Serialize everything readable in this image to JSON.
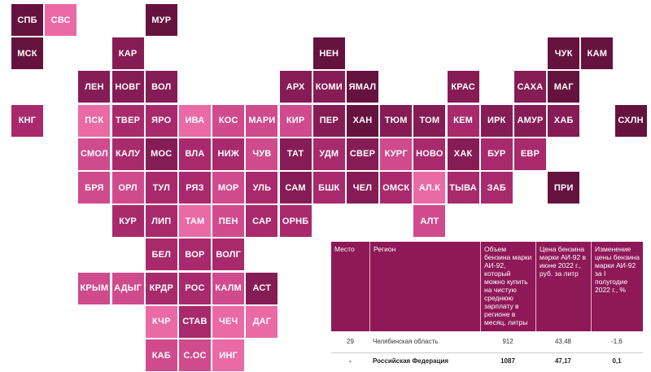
{
  "map": {
    "palette": {
      "c1": "#ea6aa6",
      "c2": "#cf4b8d",
      "c3": "#a82a6c",
      "c4": "#861c56",
      "c5": "#66123f"
    },
    "regions": [
      {
        "code": "СПБ",
        "col": 0,
        "row": 0,
        "shade": "c5"
      },
      {
        "code": "СВС",
        "col": 1,
        "row": 0,
        "shade": "c1"
      },
      {
        "code": "МУР",
        "col": 4,
        "row": 0,
        "shade": "c5"
      },
      {
        "code": "МСК",
        "col": 0,
        "row": 1,
        "shade": "c5"
      },
      {
        "code": "КАР",
        "col": 3,
        "row": 1,
        "shade": "c4"
      },
      {
        "code": "НЕН",
        "col": 9,
        "row": 1,
        "shade": "c5"
      },
      {
        "code": "ЧУК",
        "col": 16,
        "row": 1,
        "shade": "c5"
      },
      {
        "code": "КАМ",
        "col": 17,
        "row": 1,
        "shade": "c5"
      },
      {
        "code": "ЛЕН",
        "col": 2,
        "row": 2,
        "shade": "c4"
      },
      {
        "code": "НОВГ",
        "col": 3,
        "row": 2,
        "shade": "c4"
      },
      {
        "code": "ВОЛ",
        "col": 4,
        "row": 2,
        "shade": "c4"
      },
      {
        "code": "АРХ",
        "col": 8,
        "row": 2,
        "shade": "c4"
      },
      {
        "code": "КОМИ",
        "col": 9,
        "row": 2,
        "shade": "c4"
      },
      {
        "code": "ЯМАЛ",
        "col": 10,
        "row": 2,
        "shade": "c5"
      },
      {
        "code": "КРАС",
        "col": 13,
        "row": 2,
        "shade": "c4"
      },
      {
        "code": "САХА",
        "col": 15,
        "row": 2,
        "shade": "c4"
      },
      {
        "code": "МАГ",
        "col": 16,
        "row": 2,
        "shade": "c5"
      },
      {
        "code": "КНГ",
        "col": 0,
        "row": 3,
        "shade": "c3"
      },
      {
        "code": "ПСК",
        "col": 2,
        "row": 3,
        "shade": "c1"
      },
      {
        "code": "ТВЕР",
        "col": 3,
        "row": 3,
        "shade": "c3"
      },
      {
        "code": "ЯРО",
        "col": 4,
        "row": 3,
        "shade": "c3"
      },
      {
        "code": "ИВА",
        "col": 5,
        "row": 3,
        "shade": "c1"
      },
      {
        "code": "КОС",
        "col": 6,
        "row": 3,
        "shade": "c2"
      },
      {
        "code": "МАРИ",
        "col": 7,
        "row": 3,
        "shade": "c2"
      },
      {
        "code": "КИР",
        "col": 8,
        "row": 3,
        "shade": "c2"
      },
      {
        "code": "ПЕР",
        "col": 9,
        "row": 3,
        "shade": "c4"
      },
      {
        "code": "ХАН",
        "col": 10,
        "row": 3,
        "shade": "c5"
      },
      {
        "code": "ТЮМ",
        "col": 11,
        "row": 3,
        "shade": "c4"
      },
      {
        "code": "ТОМ",
        "col": 12,
        "row": 3,
        "shade": "c4"
      },
      {
        "code": "КЕМ",
        "col": 13,
        "row": 3,
        "shade": "c3"
      },
      {
        "code": "ИРК",
        "col": 14,
        "row": 3,
        "shade": "c4"
      },
      {
        "code": "АМУР",
        "col": 15,
        "row": 3,
        "shade": "c4"
      },
      {
        "code": "ХАБ",
        "col": 16,
        "row": 3,
        "shade": "c4"
      },
      {
        "code": "СХЛН",
        "col": 18,
        "row": 3,
        "shade": "c5"
      },
      {
        "code": "СМОЛ",
        "col": 2,
        "row": 4,
        "shade": "c2"
      },
      {
        "code": "КАЛУ",
        "col": 3,
        "row": 4,
        "shade": "c3"
      },
      {
        "code": "МОС",
        "col": 4,
        "row": 4,
        "shade": "c4"
      },
      {
        "code": "ВЛА",
        "col": 5,
        "row": 4,
        "shade": "c3"
      },
      {
        "code": "НИЖ",
        "col": 6,
        "row": 4,
        "shade": "c3"
      },
      {
        "code": "ЧУВ",
        "col": 7,
        "row": 4,
        "shade": "c2"
      },
      {
        "code": "ТАТ",
        "col": 8,
        "row": 4,
        "shade": "c4"
      },
      {
        "code": "УДМ",
        "col": 9,
        "row": 4,
        "shade": "c3"
      },
      {
        "code": "СВЕР",
        "col": 10,
        "row": 4,
        "shade": "c4"
      },
      {
        "code": "КУРГ",
        "col": 11,
        "row": 4,
        "shade": "c2"
      },
      {
        "code": "НОВО",
        "col": 12,
        "row": 4,
        "shade": "c3"
      },
      {
        "code": "ХАК",
        "col": 13,
        "row": 4,
        "shade": "c4"
      },
      {
        "code": "БУР",
        "col": 14,
        "row": 4,
        "shade": "c3"
      },
      {
        "code": "ЕВР",
        "col": 15,
        "row": 4,
        "shade": "c3"
      },
      {
        "code": "БРЯ",
        "col": 2,
        "row": 5,
        "shade": "c2"
      },
      {
        "code": "ОРЛ",
        "col": 3,
        "row": 5,
        "shade": "c2"
      },
      {
        "code": "ТУЛ",
        "col": 4,
        "row": 5,
        "shade": "c3"
      },
      {
        "code": "РЯЗ",
        "col": 5,
        "row": 5,
        "shade": "c3"
      },
      {
        "code": "МОР",
        "col": 6,
        "row": 5,
        "shade": "c2"
      },
      {
        "code": "УЛЬ",
        "col": 7,
        "row": 5,
        "shade": "c3"
      },
      {
        "code": "САМ",
        "col": 8,
        "row": 5,
        "shade": "c4"
      },
      {
        "code": "БШК",
        "col": 9,
        "row": 5,
        "shade": "c3"
      },
      {
        "code": "ЧЕЛ",
        "col": 10,
        "row": 5,
        "shade": "c4"
      },
      {
        "code": "ОМСК",
        "col": 11,
        "row": 5,
        "shade": "c3"
      },
      {
        "code": "АЛ.К",
        "col": 12,
        "row": 5,
        "shade": "c1"
      },
      {
        "code": "ТЫВА",
        "col": 13,
        "row": 5,
        "shade": "c3"
      },
      {
        "code": "ЗАБ",
        "col": 14,
        "row": 5,
        "shade": "c3"
      },
      {
        "code": "ПРИ",
        "col": 16,
        "row": 5,
        "shade": "c5"
      },
      {
        "code": "КУР",
        "col": 3,
        "row": 6,
        "shade": "c3"
      },
      {
        "code": "ЛИП",
        "col": 4,
        "row": 6,
        "shade": "c3"
      },
      {
        "code": "ТАМ",
        "col": 5,
        "row": 6,
        "shade": "c1"
      },
      {
        "code": "ПЕН",
        "col": 6,
        "row": 6,
        "shade": "c2"
      },
      {
        "code": "САР",
        "col": 7,
        "row": 6,
        "shade": "c3"
      },
      {
        "code": "ОРНБ",
        "col": 8,
        "row": 6,
        "shade": "c3"
      },
      {
        "code": "АЛТ",
        "col": 12,
        "row": 6,
        "shade": "c2"
      },
      {
        "code": "БЕЛ",
        "col": 4,
        "row": 7,
        "shade": "c3"
      },
      {
        "code": "ВОР",
        "col": 5,
        "row": 7,
        "shade": "c3"
      },
      {
        "code": "ВОЛГ",
        "col": 6,
        "row": 7,
        "shade": "c3"
      },
      {
        "code": "КРЫМ",
        "col": 2,
        "row": 8,
        "shade": "c2"
      },
      {
        "code": "АДЫГ",
        "col": 3,
        "row": 8,
        "shade": "c2"
      },
      {
        "code": "КРДР",
        "col": 4,
        "row": 8,
        "shade": "c3"
      },
      {
        "code": "РОС",
        "col": 5,
        "row": 8,
        "shade": "c3"
      },
      {
        "code": "КАЛМ",
        "col": 6,
        "row": 8,
        "shade": "c2"
      },
      {
        "code": "АСТ",
        "col": 7,
        "row": 8,
        "shade": "c4"
      },
      {
        "code": "КЧР",
        "col": 4,
        "row": 9,
        "shade": "c1"
      },
      {
        "code": "СТАВ",
        "col": 5,
        "row": 9,
        "shade": "c3"
      },
      {
        "code": "ЧЕЧ",
        "col": 6,
        "row": 9,
        "shade": "c1"
      },
      {
        "code": "ДАГ",
        "col": 7,
        "row": 9,
        "shade": "c1"
      },
      {
        "code": "КАБ",
        "col": 4,
        "row": 10,
        "shade": "c2"
      },
      {
        "code": "С.ОС",
        "col": 5,
        "row": 10,
        "shade": "c2"
      },
      {
        "code": "ИНГ",
        "col": 6,
        "row": 10,
        "shade": "c1"
      }
    ]
  },
  "table": {
    "headers": [
      "Место",
      "Регион",
      "Объем бензина марки АИ-92, который можно купить на чистую среднюю зарплату в регионе в месяц, литры",
      "Цена бензина марки АИ-92 в июне 2022 г., руб. за литр",
      "Изменение цены бензина марки АИ-92 за I полугодие 2022 г., %"
    ],
    "rows": [
      {
        "rank": "29",
        "region": "Челябинская область",
        "volume": "912",
        "price": "43,48",
        "change": "-1,6"
      }
    ],
    "total": {
      "rank": "-",
      "region": "Российская Федерация",
      "volume": "1087",
      "price": "47,17",
      "change": "0,1"
    }
  }
}
